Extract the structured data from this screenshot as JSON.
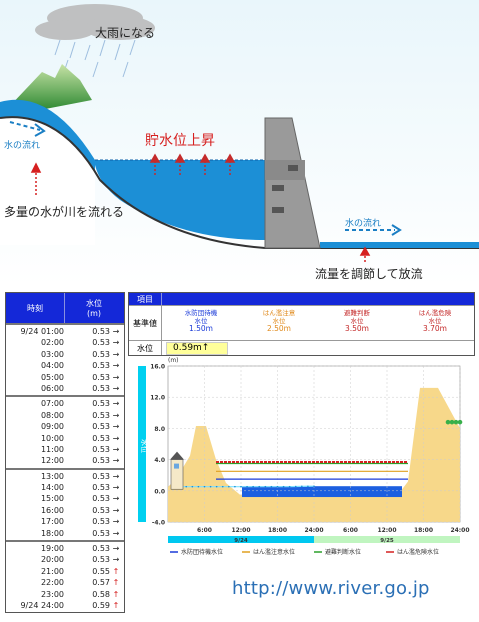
{
  "illustration": {
    "heavy_rain": "大雨になる",
    "river_flow_left": "水の流れ",
    "reservoir_rise": "貯水位上昇",
    "much_water": "多量の水が川を流れる",
    "river_flow_right": "水の流れ",
    "regulate_release": "流量を調節して放流"
  },
  "table": {
    "col_time": "時刻",
    "col_level": "水位",
    "col_unit": "(m)",
    "groups": [
      [
        {
          "t": "9/24 01:00",
          "v": "0.53",
          "a": "→"
        },
        {
          "t": "02:00",
          "v": "0.53",
          "a": "→"
        },
        {
          "t": "03:00",
          "v": "0.53",
          "a": "→"
        },
        {
          "t": "04:00",
          "v": "0.53",
          "a": "→"
        },
        {
          "t": "05:00",
          "v": "0.53",
          "a": "→"
        },
        {
          "t": "06:00",
          "v": "0.53",
          "a": "→"
        }
      ],
      [
        {
          "t": "07:00",
          "v": "0.53",
          "a": "→"
        },
        {
          "t": "08:00",
          "v": "0.53",
          "a": "→"
        },
        {
          "t": "09:00",
          "v": "0.53",
          "a": "→"
        },
        {
          "t": "10:00",
          "v": "0.53",
          "a": "→"
        },
        {
          "t": "11:00",
          "v": "0.53",
          "a": "→"
        },
        {
          "t": "12:00",
          "v": "0.53",
          "a": "→"
        }
      ],
      [
        {
          "t": "13:00",
          "v": "0.53",
          "a": "→"
        },
        {
          "t": "14:00",
          "v": "0.53",
          "a": "→"
        },
        {
          "t": "15:00",
          "v": "0.53",
          "a": "→"
        },
        {
          "t": "16:00",
          "v": "0.53",
          "a": "→"
        },
        {
          "t": "17:00",
          "v": "0.53",
          "a": "→"
        },
        {
          "t": "18:00",
          "v": "0.53",
          "a": "→"
        }
      ],
      [
        {
          "t": "19:00",
          "v": "0.53",
          "a": "→"
        },
        {
          "t": "20:00",
          "v": "0.53",
          "a": "→"
        },
        {
          "t": "21:00",
          "v": "0.55",
          "a": "↑"
        },
        {
          "t": "22:00",
          "v": "0.57",
          "a": "↑"
        },
        {
          "t": "23:00",
          "v": "0.58",
          "a": "↑"
        },
        {
          "t": "9/24 24:00",
          "v": "0.59",
          "a": "↑"
        }
      ]
    ]
  },
  "info": {
    "item_label": "項目",
    "standard_label": "基準値",
    "level_label": "水位",
    "current_level": "0.59m↑",
    "levels": [
      {
        "name": "水防団待機",
        "sub": "水位",
        "value": "1.50m",
        "color": "#1a3ad8"
      },
      {
        "name": "はん濫注意",
        "sub": "水位",
        "value": "2.50m",
        "color": "#e08a1c"
      },
      {
        "name": "避難判断",
        "sub": "水位",
        "value": "3.50m",
        "color": "#c42a2a"
      },
      {
        "name": "はん濫危険",
        "sub": "水位",
        "value": "3.70m",
        "color": "#c42a2a"
      }
    ]
  },
  "chart_data": {
    "type": "area",
    "ylabel": "水位",
    "yunit": "(m)",
    "ylim": [
      -4.0,
      16.0
    ],
    "yticks": [
      "16.0",
      "12.0",
      "8.0",
      "4.0",
      "0.0",
      "-4.0"
    ],
    "xticks": [
      "6:00",
      "12:00",
      "18:00",
      "24:00",
      "6:00",
      "12:00",
      "18:00",
      "24:00"
    ],
    "days": [
      "9/24",
      "9/25"
    ],
    "thresholds": [
      {
        "name": "水防団待機水位",
        "value": 1.5,
        "color": "#1a3ad8"
      },
      {
        "name": "はん濫注意水位",
        "value": 2.5,
        "color": "#e0a020"
      },
      {
        "name": "避難判断水位",
        "value": 3.5,
        "color": "#2aa02a"
      },
      {
        "name": "はん濫危険水位",
        "value": 3.7,
        "color": "#d42020"
      }
    ],
    "series": [
      {
        "values": [
          0.53,
          0.53,
          0.53,
          0.53,
          0.53,
          0.53,
          0.53,
          0.53,
          0.53,
          0.53,
          0.53,
          0.53,
          0.53,
          0.53,
          0.53,
          0.53,
          0.53,
          0.53,
          0.53,
          0.53,
          0.55,
          0.57,
          0.58,
          0.59
        ]
      }
    ],
    "grid": true,
    "legend": "bottom"
  },
  "url": "http://www.river.go.jp"
}
